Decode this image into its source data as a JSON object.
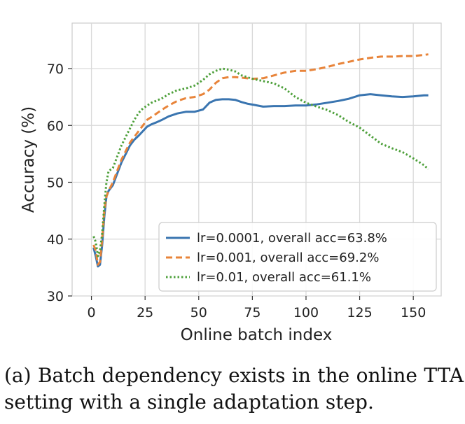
{
  "chart_data": {
    "type": "line",
    "xlabel": "Online batch index",
    "ylabel": "Accuracy (%)",
    "xlim": [
      -9,
      163
    ],
    "ylim": [
      30,
      78
    ],
    "xticks": [
      0,
      25,
      50,
      75,
      100,
      125,
      150
    ],
    "yticks": [
      30,
      40,
      50,
      60,
      70
    ],
    "grid": true,
    "legend_position": "lower-right",
    "series": [
      {
        "name": "lr=0.0001, overall acc=63.8%",
        "color": "#3a75b0",
        "dash": "solid",
        "points": [
          [
            1,
            38.5
          ],
          [
            2,
            37
          ],
          [
            3,
            35.2
          ],
          [
            4,
            35.5
          ],
          [
            5,
            39
          ],
          [
            6,
            44
          ],
          [
            7,
            47.5
          ],
          [
            8,
            48.5
          ],
          [
            10,
            49.5
          ],
          [
            12,
            51.5
          ],
          [
            14,
            53.5
          ],
          [
            16,
            55
          ],
          [
            18,
            56.5
          ],
          [
            20,
            57.5
          ],
          [
            22,
            58.2
          ],
          [
            24,
            59
          ],
          [
            26,
            59.8
          ],
          [
            28,
            60.2
          ],
          [
            30,
            60.5
          ],
          [
            33,
            61
          ],
          [
            36,
            61.6
          ],
          [
            40,
            62.1
          ],
          [
            44,
            62.4
          ],
          [
            48,
            62.4
          ],
          [
            52,
            62.8
          ],
          [
            55,
            64
          ],
          [
            58,
            64.5
          ],
          [
            61,
            64.6
          ],
          [
            64,
            64.6
          ],
          [
            67,
            64.5
          ],
          [
            70,
            64.1
          ],
          [
            73,
            63.8
          ],
          [
            76,
            63.6
          ],
          [
            80,
            63.3
          ],
          [
            85,
            63.4
          ],
          [
            90,
            63.4
          ],
          [
            95,
            63.5
          ],
          [
            100,
            63.5
          ],
          [
            105,
            63.7
          ],
          [
            110,
            64
          ],
          [
            115,
            64.3
          ],
          [
            120,
            64.7
          ],
          [
            125,
            65.3
          ],
          [
            130,
            65.5
          ],
          [
            135,
            65.3
          ],
          [
            140,
            65.1
          ],
          [
            145,
            65
          ],
          [
            150,
            65.1
          ],
          [
            155,
            65.3
          ],
          [
            157,
            65.3
          ]
        ]
      },
      {
        "name": "lr=0.001, overall acc=69.2%",
        "color": "#e8843a",
        "dash": "dashed",
        "points": [
          [
            1,
            39
          ],
          [
            2,
            38
          ],
          [
            3,
            35.5
          ],
          [
            4,
            36
          ],
          [
            5,
            40
          ],
          [
            6,
            45
          ],
          [
            7,
            47.5
          ],
          [
            8,
            48.5
          ],
          [
            10,
            50
          ],
          [
            12,
            52
          ],
          [
            14,
            54
          ],
          [
            16,
            55.5
          ],
          [
            18,
            57
          ],
          [
            20,
            58
          ],
          [
            22,
            59
          ],
          [
            24,
            60
          ],
          [
            26,
            61
          ],
          [
            28,
            61.5
          ],
          [
            30,
            62
          ],
          [
            33,
            62.8
          ],
          [
            36,
            63.5
          ],
          [
            40,
            64.3
          ],
          [
            44,
            64.8
          ],
          [
            48,
            65
          ],
          [
            52,
            65.5
          ],
          [
            55,
            66.3
          ],
          [
            58,
            67.5
          ],
          [
            61,
            68.3
          ],
          [
            64,
            68.5
          ],
          [
            67,
            68.5
          ],
          [
            70,
            68.4
          ],
          [
            75,
            68.2
          ],
          [
            80,
            68.3
          ],
          [
            85,
            68.8
          ],
          [
            90,
            69.3
          ],
          [
            95,
            69.6
          ],
          [
            100,
            69.6
          ],
          [
            105,
            69.9
          ],
          [
            110,
            70.3
          ],
          [
            115,
            70.8
          ],
          [
            120,
            71.2
          ],
          [
            125,
            71.6
          ],
          [
            130,
            71.9
          ],
          [
            135,
            72.1
          ],
          [
            140,
            72.1
          ],
          [
            145,
            72.2
          ],
          [
            150,
            72.2
          ],
          [
            155,
            72.4
          ],
          [
            157,
            72.5
          ]
        ]
      },
      {
        "name": "lr=0.01, overall acc=61.1%",
        "color": "#4ea03b",
        "dash": "dotted",
        "points": [
          [
            1,
            40.5
          ],
          [
            2,
            39.5
          ],
          [
            3,
            37
          ],
          [
            4,
            38
          ],
          [
            5,
            41
          ],
          [
            6,
            46
          ],
          [
            7,
            50
          ],
          [
            8,
            52
          ],
          [
            10,
            52.5
          ],
          [
            12,
            54.5
          ],
          [
            14,
            56.5
          ],
          [
            16,
            58
          ],
          [
            18,
            59.5
          ],
          [
            20,
            61
          ],
          [
            22,
            62.2
          ],
          [
            24,
            63
          ],
          [
            26,
            63.5
          ],
          [
            28,
            64
          ],
          [
            30,
            64.3
          ],
          [
            33,
            64.8
          ],
          [
            36,
            65.5
          ],
          [
            40,
            66.2
          ],
          [
            44,
            66.5
          ],
          [
            48,
            67
          ],
          [
            52,
            68
          ],
          [
            55,
            69
          ],
          [
            58,
            69.6
          ],
          [
            61,
            70
          ],
          [
            64,
            69.8
          ],
          [
            67,
            69.5
          ],
          [
            70,
            68.8
          ],
          [
            75,
            68.2
          ],
          [
            80,
            67.8
          ],
          [
            85,
            67.4
          ],
          [
            90,
            66.5
          ],
          [
            95,
            65
          ],
          [
            100,
            64
          ],
          [
            105,
            63.3
          ],
          [
            110,
            62.7
          ],
          [
            115,
            61.8
          ],
          [
            120,
            60.6
          ],
          [
            125,
            59.6
          ],
          [
            130,
            58.2
          ],
          [
            135,
            56.8
          ],
          [
            140,
            56
          ],
          [
            145,
            55.3
          ],
          [
            150,
            54.2
          ],
          [
            155,
            53
          ],
          [
            157,
            52.3
          ]
        ]
      }
    ]
  },
  "caption": "(a) Batch dependency exists in the online TTA setting with a single adaptation step."
}
